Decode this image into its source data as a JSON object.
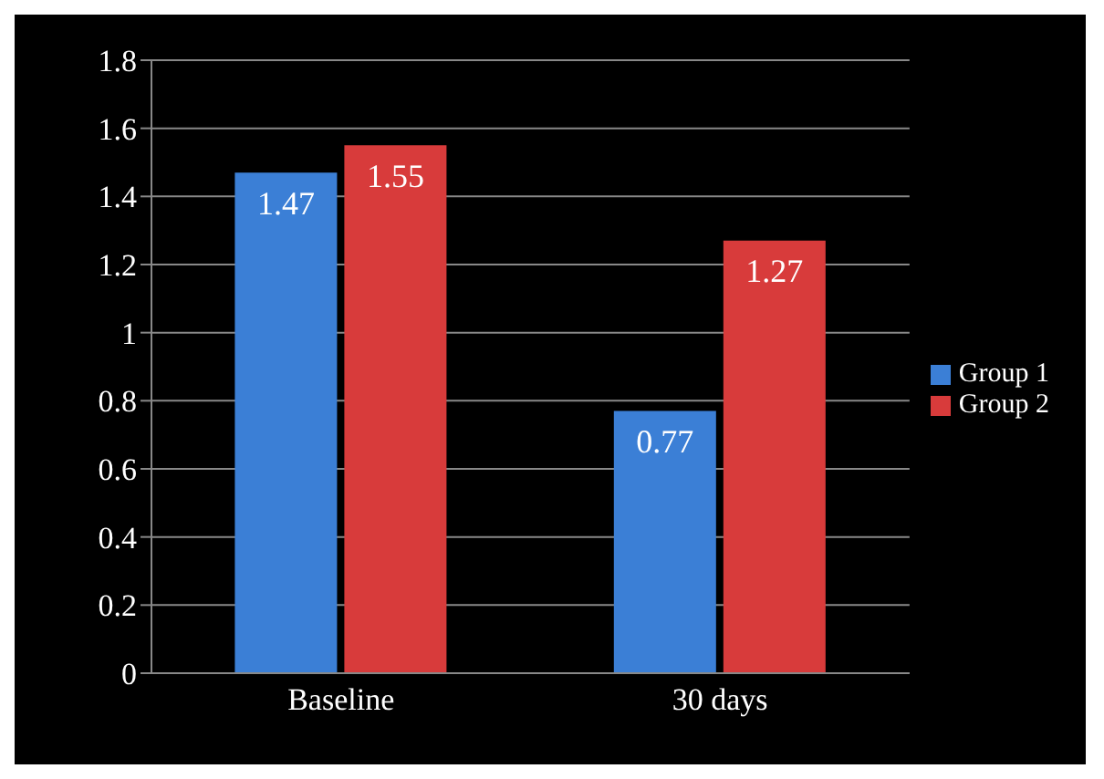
{
  "chart_data": {
    "type": "bar",
    "categories": [
      "Baseline",
      "30 days"
    ],
    "series": [
      {
        "name": "Group 1",
        "color": "#3b7fd6",
        "values": [
          1.47,
          0.77
        ]
      },
      {
        "name": "Group 2",
        "color": "#d83b3b",
        "values": [
          1.55,
          1.27
        ]
      }
    ],
    "ylim": [
      0,
      1.8
    ],
    "yticks": [
      0,
      0.2,
      0.4,
      0.6,
      0.8,
      1,
      1.2,
      1.4,
      1.6,
      1.8
    ],
    "grid": "y",
    "legend": "right",
    "data_labels": true
  }
}
